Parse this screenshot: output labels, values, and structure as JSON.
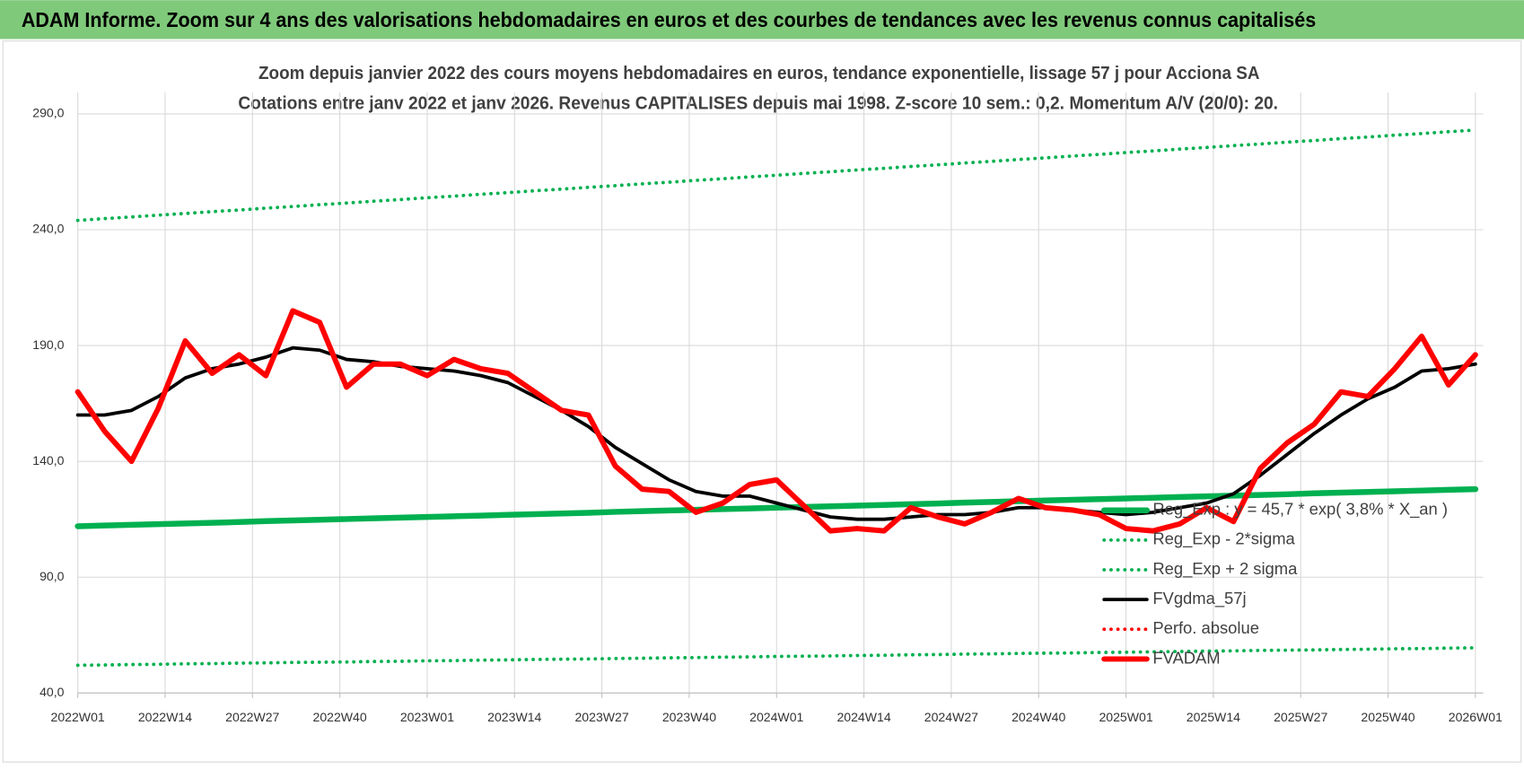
{
  "header": {
    "title": "ADAM Informe. Zoom sur 4 ans des valorisations hebdomadaires en euros et des courbes de tendances avec les revenus connus capitalisés"
  },
  "chart_data": {
    "type": "line",
    "title": "Zoom depuis janvier 2022 des cours moyens hebdomadaires en euros, tendance exponentielle, lissage 57 j pour Acciona SA",
    "subtitle": "Cotations entre janv 2022 et janv 2026. Revenus CAPITALISES depuis mai 1998. Z-score 10 sem.: 0,2. Momentum A/V (20/0): 20.",
    "x": [
      0,
      4,
      8,
      12,
      16,
      20,
      24,
      28,
      32,
      36,
      40,
      44,
      48,
      52,
      56,
      60,
      64,
      68,
      72,
      76,
      80,
      84,
      88,
      92,
      96,
      100,
      104,
      108,
      112,
      116,
      120,
      124,
      128,
      132,
      136,
      140,
      144,
      148,
      152,
      156,
      160,
      164,
      168,
      172,
      176,
      180,
      184,
      188,
      192,
      196,
      200,
      204,
      208
    ],
    "xlim": [
      0,
      208
    ],
    "xticks": [
      {
        "value": 0,
        "label": "2022W01"
      },
      {
        "value": 13,
        "label": "2022W14"
      },
      {
        "value": 26,
        "label": "2022W27"
      },
      {
        "value": 39,
        "label": "2022W40"
      },
      {
        "value": 52,
        "label": "2023W01"
      },
      {
        "value": 65,
        "label": "2023W14"
      },
      {
        "value": 78,
        "label": "2023W27"
      },
      {
        "value": 91,
        "label": "2023W40"
      },
      {
        "value": 104,
        "label": "2024W01"
      },
      {
        "value": 117,
        "label": "2024W14"
      },
      {
        "value": 130,
        "label": "2024W27"
      },
      {
        "value": 143,
        "label": "2024W40"
      },
      {
        "value": 156,
        "label": "2025W01"
      },
      {
        "value": 169,
        "label": "2025W14"
      },
      {
        "value": 182,
        "label": "2025W27"
      },
      {
        "value": 195,
        "label": "2025W40"
      },
      {
        "value": 208,
        "label": "2026W01"
      }
    ],
    "ylim": [
      40,
      290
    ],
    "yticks": [
      {
        "value": 40,
        "label": "40,0"
      },
      {
        "value": 90,
        "label": "90,0"
      },
      {
        "value": 140,
        "label": "140,0"
      },
      {
        "value": 190,
        "label": "190,0"
      },
      {
        "value": 240,
        "label": "240,0"
      },
      {
        "value": 290,
        "label": "290,0"
      }
    ],
    "grid": true,
    "legend": "bottom-right",
    "series": [
      {
        "name": "Reg_Exp : y = 45,7 * exp( 3,8% * X_an )",
        "color": "#00b050",
        "style": "solid",
        "values": [
          112.0,
          112.3,
          112.6,
          112.9,
          113.2,
          113.5,
          113.8,
          114.2,
          114.5,
          114.8,
          115.1,
          115.4,
          115.7,
          116.0,
          116.3,
          116.6,
          116.9,
          117.2,
          117.5,
          117.8,
          118.2,
          118.5,
          118.8,
          119.1,
          119.4,
          119.7,
          120.0,
          120.3,
          120.6,
          120.9,
          121.2,
          121.5,
          121.8,
          122.2,
          122.5,
          122.8,
          123.1,
          123.4,
          123.7,
          124.0,
          124.3,
          124.6,
          124.9,
          125.2,
          125.5,
          125.8,
          126.2,
          126.5,
          126.8,
          127.1,
          127.4,
          127.7,
          128.0
        ]
      },
      {
        "name": "Reg_Exp - 2*sigma",
        "color": "#00b050",
        "style": "dotted",
        "values": [
          52.0,
          52.1,
          52.3,
          52.4,
          52.6,
          52.7,
          52.9,
          53.0,
          53.2,
          53.3,
          53.4,
          53.6,
          53.7,
          53.9,
          54.0,
          54.2,
          54.3,
          54.5,
          54.6,
          54.7,
          54.9,
          55.0,
          55.2,
          55.3,
          55.5,
          55.6,
          55.8,
          55.9,
          56.0,
          56.2,
          56.3,
          56.5,
          56.6,
          56.8,
          56.9,
          57.1,
          57.2,
          57.3,
          57.5,
          57.6,
          57.8,
          57.9,
          58.1,
          58.2,
          58.4,
          58.5,
          58.6,
          58.8,
          58.9,
          59.1,
          59.2,
          59.4,
          59.5
        ]
      },
      {
        "name": "Reg_Exp + 2 sigma",
        "color": "#00b050",
        "style": "dotted",
        "values": [
          244.0,
          244.8,
          245.5,
          246.3,
          247.0,
          247.8,
          248.5,
          249.3,
          250.0,
          250.8,
          251.5,
          252.3,
          253.0,
          253.8,
          254.5,
          255.3,
          256.0,
          256.8,
          257.5,
          258.3,
          259.0,
          259.8,
          260.5,
          261.3,
          262.0,
          262.8,
          263.5,
          264.3,
          265.0,
          265.8,
          266.5,
          267.3,
          268.0,
          268.8,
          269.5,
          270.3,
          271.0,
          271.8,
          272.5,
          273.3,
          274.0,
          274.8,
          275.5,
          276.3,
          277.0,
          277.8,
          278.5,
          279.3,
          280.0,
          280.8,
          281.5,
          282.3,
          283.0
        ]
      },
      {
        "name": "FVgdma_57j",
        "color": "#000000",
        "style": "solid",
        "values": [
          160,
          160,
          162,
          168,
          176,
          180,
          182,
          185,
          189,
          188,
          184,
          183,
          181,
          180,
          179,
          177,
          174,
          168,
          162,
          155,
          146,
          139,
          132,
          127,
          125,
          125,
          122,
          119,
          116,
          115,
          115,
          116,
          117,
          117,
          118,
          120,
          120,
          119,
          118,
          117,
          118,
          120,
          122,
          126,
          134,
          143,
          152,
          160,
          167,
          172,
          179,
          180,
          182
        ]
      },
      {
        "name": "Perfo. absolue",
        "color": "#ff0000",
        "style": "dotted",
        "values": [
          null,
          null,
          null,
          null,
          null,
          null,
          null,
          null,
          null,
          null,
          null,
          null,
          null,
          null,
          null,
          null,
          null,
          null,
          null,
          null,
          null,
          null,
          null,
          null,
          null,
          null,
          null,
          null,
          null,
          null,
          null,
          null,
          null,
          null,
          null,
          null,
          null,
          null,
          null,
          null,
          null,
          null,
          null,
          null,
          null,
          null,
          null,
          null,
          null,
          null,
          null,
          null,
          null
        ]
      },
      {
        "name": "FVADAM",
        "color": "#ff0000",
        "style": "thick",
        "values": [
          170,
          153,
          140,
          163,
          192,
          178,
          186,
          177,
          205,
          200,
          172,
          182,
          182,
          177,
          184,
          180,
          178,
          170,
          162,
          160,
          138,
          128,
          127,
          118,
          122,
          130,
          132,
          121,
          110,
          111,
          110,
          120,
          116,
          113,
          118,
          124,
          120,
          119,
          117,
          111,
          110,
          113,
          120,
          114,
          137,
          148,
          156,
          170,
          168,
          180,
          194,
          173,
          186
        ]
      }
    ]
  }
}
